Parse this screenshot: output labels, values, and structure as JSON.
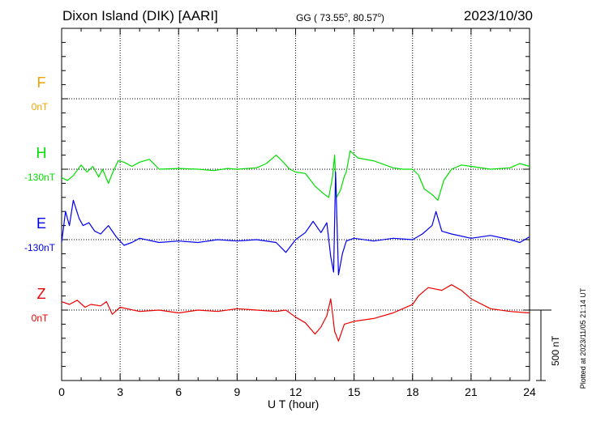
{
  "header": {
    "station": "Dixon Island (DIK)  [AARI]",
    "coords_prefix": "GG ( 73.55",
    "coords_mid": ",  80.57",
    "coords_suffix": ")",
    "degree_mark": "o",
    "date": "2023/10/30"
  },
  "footer": {
    "xlabel": "U T (hour)",
    "stamp": "Plotted at 2023/11/05 21:14 UT"
  },
  "scale": {
    "label": "500 nT",
    "nT": 500
  },
  "colors": {
    "F": "#f5a300",
    "H": "#00dd00",
    "E": "#0000ee",
    "Z": "#ee0000",
    "frame": "#000000",
    "grid": "#000000"
  },
  "chart_data": {
    "type": "line",
    "title": "Dixon Island (DIK)  [AARI]",
    "xlabel": "U T (hour)",
    "ylabel": "",
    "xlim": [
      0,
      24
    ],
    "xticks": [
      0,
      3,
      6,
      9,
      12,
      15,
      18,
      21,
      24
    ],
    "xtick_labels": [
      "0",
      "3",
      "6",
      "9",
      "12",
      "15",
      "18",
      "21",
      "24"
    ],
    "y_units": "nT deviation from channel baseline",
    "grid": true,
    "channels": [
      {
        "name": "F",
        "baseline_label": "0nT",
        "baseline_nT": 0,
        "color": "#f5a300",
        "x": [],
        "y": []
      },
      {
        "name": "H",
        "baseline_label": "-130nT",
        "baseline_nT": -130,
        "color": "#00dd00",
        "x": [
          0,
          0.3,
          0.6,
          1.0,
          1.3,
          1.6,
          1.9,
          2.1,
          2.4,
          2.6,
          2.9,
          3.2,
          3.6,
          4.0,
          4.5,
          5.0,
          6.0,
          7.0,
          7.8,
          8.5,
          9.0,
          10.0,
          10.5,
          11.0,
          11.3,
          11.7,
          12.0,
          12.5,
          13.0,
          13.4,
          13.7,
          13.9,
          14.0,
          14.1,
          14.3,
          14.5,
          14.6,
          14.8,
          15.2,
          16.0,
          17.0,
          17.5,
          18.0,
          18.3,
          18.6,
          19.0,
          19.3,
          19.6,
          20.0,
          20.5,
          21.0,
          22.0,
          23.0,
          23.5,
          24.0
        ],
        "y": [
          -60,
          -80,
          -45,
          30,
          -20,
          20,
          -55,
          0,
          -100,
          -30,
          60,
          50,
          20,
          50,
          70,
          0,
          5,
          0,
          -10,
          5,
          0,
          10,
          40,
          100,
          60,
          0,
          -20,
          -30,
          -120,
          -170,
          -200,
          -50,
          100,
          -200,
          -150,
          -50,
          -20,
          130,
          80,
          60,
          10,
          0,
          0,
          -40,
          -140,
          -180,
          -220,
          -80,
          0,
          30,
          20,
          0,
          10,
          40,
          20
        ]
      },
      {
        "name": "E",
        "baseline_label": "-130nT",
        "baseline_nT": -130,
        "color": "#0000ee",
        "x": [
          0,
          0.2,
          0.4,
          0.6,
          0.9,
          1.1,
          1.4,
          1.7,
          2.0,
          2.4,
          2.8,
          3.2,
          3.6,
          4.0,
          5.0,
          6.0,
          7.0,
          8.0,
          9.0,
          10.0,
          11.0,
          11.5,
          12.0,
          12.5,
          12.9,
          13.3,
          13.6,
          13.8,
          13.95,
          14.05,
          14.2,
          14.4,
          14.6,
          15.0,
          16.0,
          17.0,
          18.0,
          18.5,
          19.0,
          19.2,
          19.5,
          20.0,
          21.0,
          22.0,
          23.0,
          23.5,
          24.0
        ],
        "y": [
          -20,
          200,
          100,
          280,
          150,
          100,
          120,
          60,
          40,
          100,
          20,
          -40,
          -20,
          10,
          -20,
          -10,
          -20,
          0,
          -10,
          0,
          -20,
          -90,
          0,
          50,
          130,
          50,
          120,
          -120,
          -230,
          480,
          -250,
          -100,
          -10,
          10,
          -10,
          10,
          0,
          40,
          100,
          200,
          60,
          40,
          10,
          30,
          0,
          -20,
          20
        ]
      },
      {
        "name": "Z",
        "baseline_label": "0nT",
        "baseline_nT": 0,
        "color": "#ee0000",
        "x": [
          0,
          0.4,
          0.8,
          1.2,
          1.5,
          2.0,
          2.3,
          2.6,
          3.0,
          4.0,
          5.0,
          6.0,
          7.0,
          8.0,
          9.0,
          10.0,
          11.0,
          11.5,
          12.0,
          12.5,
          13.0,
          13.3,
          13.6,
          13.8,
          13.9,
          14.0,
          14.2,
          14.5,
          15.0,
          16.0,
          17.0,
          18.0,
          18.3,
          18.8,
          19.5,
          20.0,
          20.5,
          21.0,
          22.0,
          23.0,
          24.0
        ],
        "y": [
          60,
          40,
          70,
          20,
          40,
          30,
          60,
          -30,
          20,
          -10,
          0,
          -20,
          0,
          -10,
          10,
          0,
          -10,
          0,
          -50,
          -90,
          -170,
          -120,
          -40,
          80,
          -30,
          -150,
          -220,
          -100,
          -80,
          -60,
          -20,
          40,
          100,
          160,
          140,
          180,
          140,
          80,
          10,
          -10,
          -20
        ]
      }
    ]
  }
}
